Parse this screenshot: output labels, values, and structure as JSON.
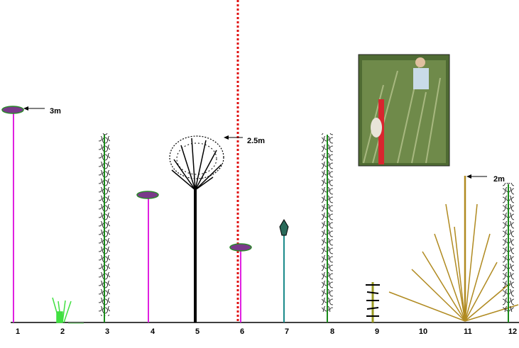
{
  "positions": [
    "1",
    "2",
    "3",
    "4",
    "5",
    "6",
    "7",
    "8",
    "9",
    "10",
    "11",
    "12"
  ],
  "height_labels": [
    "3m",
    "2.5m",
    "2m"
  ]
}
